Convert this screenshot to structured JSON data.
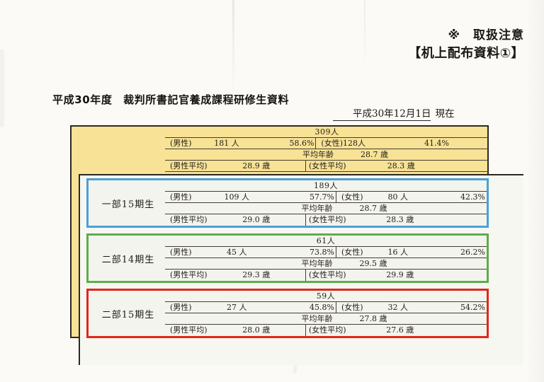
{
  "notice": {
    "line1": "※　取扱注意",
    "line2": "【机上配布資料①】"
  },
  "header": {
    "title": "平成30年度　裁判所書記官養成課程研修生資料",
    "date_value": "平成30年12月1日",
    "date_suffix": "現在"
  },
  "labels": {
    "male": "(男性)",
    "female": "(女性)",
    "avg_age": "平均年齢",
    "male_avg": "(男性平均)",
    "female_avg": "(女性平均)"
  },
  "summary": {
    "total": "309人",
    "male_count": "181 人",
    "male_pct": "58.6%",
    "female_count": "128人",
    "female_pct": "41.4%",
    "avg_age": "28.7 歳",
    "male_avg": "28.9 歳",
    "female_avg": "28.3 歳"
  },
  "groups": [
    {
      "name": "一部15期生",
      "accent": "#4aa0d8",
      "total": "189人",
      "male_count": "109 人",
      "male_pct": "57.7%",
      "female_count": "80 人",
      "female_pct": "42.3%",
      "avg_age": "28.7 歳",
      "male_avg": "29.0 歳",
      "female_avg": "28.3 歳"
    },
    {
      "name": "二部14期生",
      "accent": "#5dad4b",
      "total": "61人",
      "male_count": "45 人",
      "male_pct": "73.8%",
      "female_count": "16 人",
      "female_pct": "26.2%",
      "avg_age": "29.5 歳",
      "male_avg": "29.3 歳",
      "female_avg": "29.9 歳"
    },
    {
      "name": "二部15期生",
      "accent": "#e0271c",
      "total": "59人",
      "male_count": "27 人",
      "male_pct": "45.8%",
      "female_count": "32 人",
      "female_pct": "54.2%",
      "avg_age": "27.8 歳",
      "male_avg": "28.0 歳",
      "female_avg": "27.6 歳"
    }
  ],
  "colors": {
    "paper_yellow": "#f8e296",
    "line_dark": "#433f34"
  }
}
